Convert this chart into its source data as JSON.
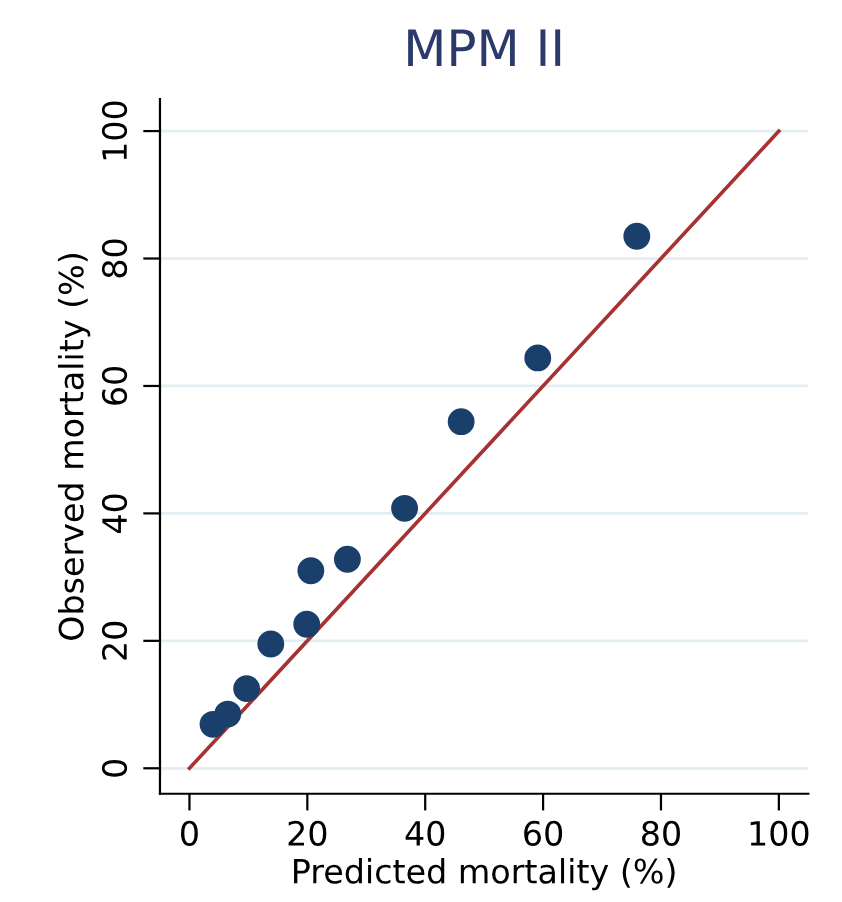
{
  "chart_data": {
    "type": "scatter",
    "title": "MPM II",
    "xlabel": "Predicted mortality (%)",
    "ylabel": "Observed mortality (%)",
    "xlim": [
      -5,
      105
    ],
    "ylim": [
      -4,
      105
    ],
    "xticks": [
      0,
      20,
      40,
      60,
      80,
      100
    ],
    "yticks": [
      0,
      20,
      40,
      60,
      80,
      100
    ],
    "grid": "y",
    "series": [
      {
        "marker": "circle",
        "color": "#1a3f6b",
        "x": [
          4.0,
          6.5,
          9.7,
          13.8,
          19.9,
          20.6,
          26.8,
          36.5,
          46.1,
          59.1,
          75.9
        ],
        "values": [
          6.9,
          8.5,
          12.5,
          19.5,
          22.6,
          31.0,
          32.8,
          40.8,
          54.4,
          64.4,
          83.5
        ]
      },
      {
        "type": "line",
        "color": "#a83232",
        "x": [
          0,
          100
        ],
        "values": [
          0,
          100
        ]
      }
    ]
  }
}
